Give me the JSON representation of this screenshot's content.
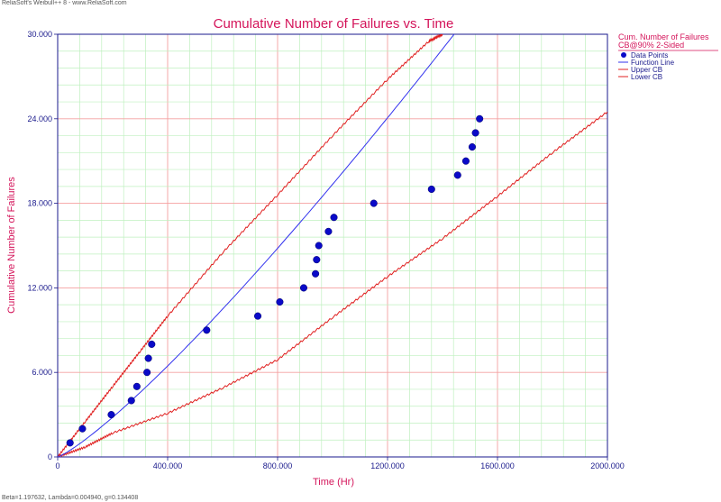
{
  "header_text": "ReliaSoft's Weibull++ 8 - www.ReliaSoft.com",
  "footer_text": "Beta=1.197632, Lambda=0.004940, g=0.134408",
  "chart_data": {
    "type": "scatter",
    "title": "Cumulative Number of Failures vs. Time",
    "xlabel": "Time (Hr)",
    "ylabel": "Cumulative Number of Failures",
    "xlim": [
      0,
      2000
    ],
    "ylim": [
      0,
      30
    ],
    "x_ticks": [
      "0",
      "400.000",
      "800.000",
      "1200.000",
      "1600.000",
      "2000.000"
    ],
    "y_ticks": [
      "0",
      "6.000",
      "12.000",
      "18.000",
      "24.000",
      "30.000"
    ],
    "grid": true,
    "legend": {
      "placement": "top-right",
      "title_lines": [
        "Cum. Number of Failures",
        "CB@90% 2-Sided"
      ],
      "entries": [
        "Data Points",
        "Function Line",
        "Upper CB",
        "Lower CB"
      ]
    },
    "colors": {
      "points": "#0a0ac8",
      "function_line": "#3333ee",
      "confidence_bounds": "#e02020",
      "major_grid": "#f4a0a0",
      "minor_grid": "#bff0bf",
      "title": "#d4145a",
      "ticks": "#1a1a8c"
    },
    "series": [
      {
        "name": "Data Points",
        "points": [
          {
            "x": 45,
            "y": 1
          },
          {
            "x": 90,
            "y": 2
          },
          {
            "x": 195,
            "y": 3
          },
          {
            "x": 268,
            "y": 4
          },
          {
            "x": 288,
            "y": 5
          },
          {
            "x": 325,
            "y": 6
          },
          {
            "x": 330,
            "y": 7
          },
          {
            "x": 342,
            "y": 8
          },
          {
            "x": 542,
            "y": 9
          },
          {
            "x": 728,
            "y": 10
          },
          {
            "x": 808,
            "y": 11
          },
          {
            "x": 895,
            "y": 12
          },
          {
            "x": 938,
            "y": 13
          },
          {
            "x": 942,
            "y": 14
          },
          {
            "x": 950,
            "y": 15
          },
          {
            "x": 985,
            "y": 16
          },
          {
            "x": 1005,
            "y": 17
          },
          {
            "x": 1150,
            "y": 18
          },
          {
            "x": 1360,
            "y": 19
          },
          {
            "x": 1455,
            "y": 20
          },
          {
            "x": 1485,
            "y": 21
          },
          {
            "x": 1508,
            "y": 22
          },
          {
            "x": 1520,
            "y": 23
          },
          {
            "x": 1535,
            "y": 24
          }
        ]
      },
      {
        "name": "Function Line",
        "beta": 1.197632,
        "lambda": 0.00494,
        "x_range": [
          0,
          1870
        ]
      },
      {
        "name": "Upper CB",
        "points": [
          {
            "x": 0,
            "y": 0
          },
          {
            "x": 100,
            "y": 2.5
          },
          {
            "x": 200,
            "y": 5.0
          },
          {
            "x": 300,
            "y": 7.5
          },
          {
            "x": 400,
            "y": 10.0
          },
          {
            "x": 600,
            "y": 14.5
          },
          {
            "x": 800,
            "y": 18.6
          },
          {
            "x": 1000,
            "y": 22.8
          },
          {
            "x": 1200,
            "y": 26.8
          },
          {
            "x": 1350,
            "y": 29.5
          },
          {
            "x": 1400,
            "y": 30.0
          }
        ]
      },
      {
        "name": "Lower CB",
        "points": [
          {
            "x": 0,
            "y": 0
          },
          {
            "x": 100,
            "y": 0.7
          },
          {
            "x": 200,
            "y": 1.7
          },
          {
            "x": 400,
            "y": 3.1
          },
          {
            "x": 600,
            "y": 4.9
          },
          {
            "x": 800,
            "y": 6.9
          },
          {
            "x": 1000,
            "y": 9.9
          },
          {
            "x": 1200,
            "y": 12.8
          },
          {
            "x": 1400,
            "y": 15.5
          },
          {
            "x": 1600,
            "y": 18.5
          },
          {
            "x": 1800,
            "y": 21.6
          },
          {
            "x": 2000,
            "y": 24.5
          }
        ]
      }
    ]
  }
}
